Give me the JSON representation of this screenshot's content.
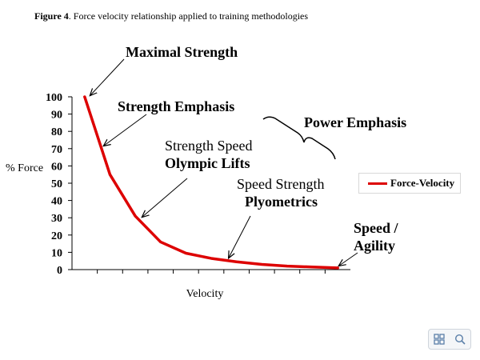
{
  "caption": {
    "label": "Figure 4",
    "text": ". Force velocity relationship applied to training methodologies"
  },
  "chart_data": {
    "type": "line",
    "title": "Force velocity relationship applied to training methodologies",
    "xlabel": "Velocity",
    "ylabel": "% Force",
    "ylim": [
      0,
      100
    ],
    "yticks": [
      0,
      10,
      20,
      30,
      40,
      50,
      60,
      70,
      80,
      90,
      100
    ],
    "x": [
      1,
      2,
      3,
      4,
      5,
      6,
      7,
      8,
      9,
      10,
      11
    ],
    "xlim": [
      0.5,
      11.5
    ],
    "series": [
      {
        "name": "Force-Velocity",
        "color": "#dd0000",
        "values": [
          100,
          55,
          31,
          16,
          9.5,
          6.5,
          4.5,
          3,
          2,
          1.5,
          1
        ]
      }
    ],
    "legend": {
      "label": "Force-Velocity",
      "placement": "right"
    },
    "annotations": {
      "maximal_strength": "Maximal Strength",
      "strength_emphasis": "Strength Emphasis",
      "power_emphasis": "Power Emphasis",
      "strength_speed": "Strength Speed",
      "olympic_lifts": "Olympic Lifts",
      "speed_strength": "Speed Strength",
      "plyometrics": "Plyometrics",
      "speed_line1": "Speed /",
      "speed_line2": "Agility"
    }
  },
  "toolbar": {
    "grid_icon": "grid-icon",
    "search_icon": "search-icon",
    "accent": "#5a7fa8"
  }
}
